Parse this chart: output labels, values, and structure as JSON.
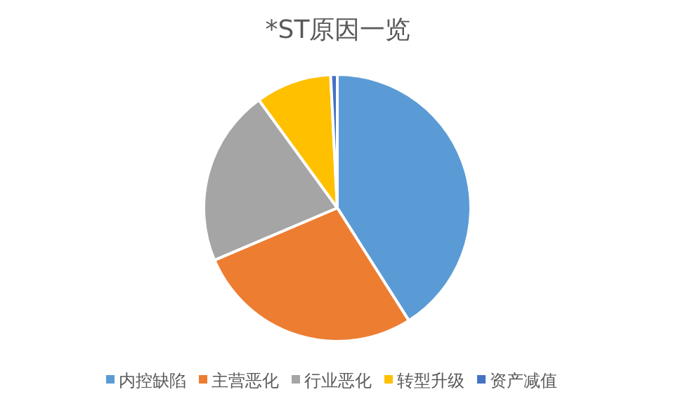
{
  "chart_data": {
    "type": "pie",
    "title": "*ST原因一览",
    "categories": [
      "内控缺陷",
      "主营恶化",
      "行业恶化",
      "转型升级",
      "资产减值"
    ],
    "values": [
      41,
      27.6,
      21.4,
      9.2,
      0.8
    ],
    "colors": [
      "#5b9bd5",
      "#ed7d31",
      "#a5a5a5",
      "#ffc000",
      "#4472c4"
    ],
    "legend": "bottom"
  }
}
